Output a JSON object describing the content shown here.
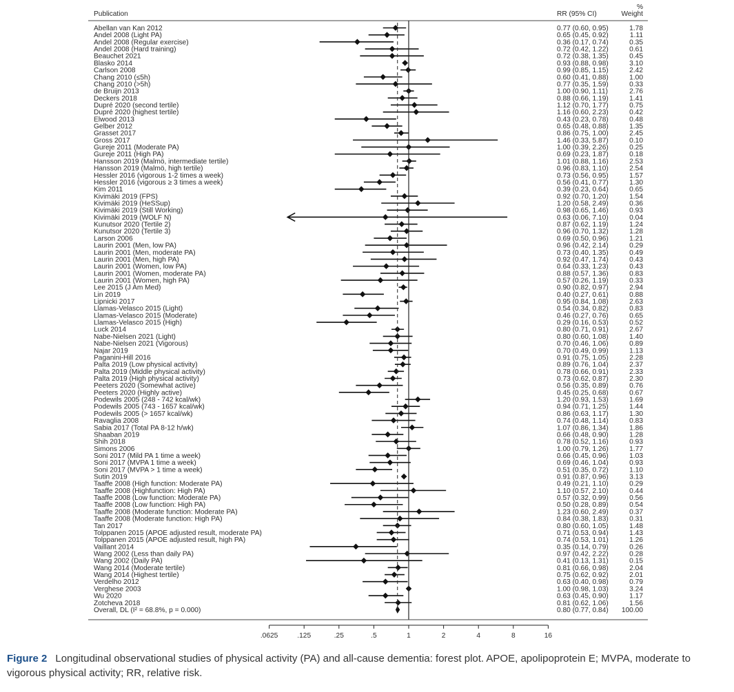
{
  "header": {
    "publication": "Publication",
    "rr": "RR (95% CI)",
    "pct": "%",
    "weight": "Weight"
  },
  "caption": {
    "label": "Figure 2",
    "text": "Longitudinal observational studies of physical activity (PA) and all-cause dementia: forest plot. APOE, apolipoprotein E; MVPA, moderate to vigorous physical activity; RR, relative risk."
  },
  "chart_data": {
    "type": "forest",
    "x_scale": "log2",
    "xlim": [
      0.0625,
      16
    ],
    "xticks": [
      ".0625",
      ".125",
      ".25",
      ".5",
      "1",
      "2",
      "4",
      "8",
      "16"
    ],
    "xtick_values": [
      0.0625,
      0.125,
      0.25,
      0.5,
      1,
      2,
      4,
      8,
      16
    ],
    "null_line": 1,
    "pooled_line": 0.8,
    "studies": [
      {
        "name": "Abellan van Kan 2012",
        "rr": 0.77,
        "lo": 0.6,
        "hi": 0.95,
        "ci": "0.77 (0.60, 0.95)",
        "w": "1.78"
      },
      {
        "name": "Andel 2008 (Light PA)",
        "rr": 0.65,
        "lo": 0.45,
        "hi": 0.92,
        "ci": "0.65 (0.45, 0.92)",
        "w": "1.11"
      },
      {
        "name": "Andel 2008 (Regular exercise)",
        "rr": 0.36,
        "lo": 0.17,
        "hi": 0.74,
        "ci": "0.36 (0.17, 0.74)",
        "w": "0.35"
      },
      {
        "name": "Andel 2008 (Hard training)",
        "rr": 0.72,
        "lo": 0.42,
        "hi": 1.22,
        "ci": "0.72 (0.42, 1.22)",
        "w": "0.61"
      },
      {
        "name": "Beauchet 2021",
        "rr": 0.72,
        "lo": 0.38,
        "hi": 1.35,
        "ci": "0.72 (0.38, 1.35)",
        "w": "0.45"
      },
      {
        "name": "Blasko 2014",
        "rr": 0.93,
        "lo": 0.88,
        "hi": 0.98,
        "ci": "0.93 (0.88, 0.98)",
        "w": "3.10"
      },
      {
        "name": "Carlson 2008",
        "rr": 0.99,
        "lo": 0.85,
        "hi": 1.15,
        "ci": "0.99 (0.85, 1.15)",
        "w": "2.42"
      },
      {
        "name": "Chang 2010 (≤5h)",
        "rr": 0.6,
        "lo": 0.41,
        "hi": 0.88,
        "ci": "0.60 (0.41, 0.88)",
        "w": "1.00"
      },
      {
        "name": "Chang 2010 (>5h)",
        "rr": 0.77,
        "lo": 0.35,
        "hi": 1.59,
        "ci": "0.77 (0.35, 1.59)",
        "w": "0.33"
      },
      {
        "name": "de Bruijn 2013",
        "rr": 1.0,
        "lo": 0.9,
        "hi": 1.11,
        "ci": "1.00 (0.90, 1.11)",
        "w": "2.76"
      },
      {
        "name": "Deckers 2018",
        "rr": 0.88,
        "lo": 0.66,
        "hi": 1.19,
        "ci": "0.88 (0.66, 1.19)",
        "w": "1.41"
      },
      {
        "name": "Dupré 2020 (second tertile)",
        "rr": 1.12,
        "lo": 0.7,
        "hi": 1.77,
        "ci": "1.12 (0.70, 1.77)",
        "w": "0.75"
      },
      {
        "name": "Dupré 2020 (highest tertile)",
        "rr": 1.16,
        "lo": 0.6,
        "hi": 2.23,
        "ci": "1.16 (0.60, 2.23)",
        "w": "0.42"
      },
      {
        "name": "Elwood 2013",
        "rr": 0.43,
        "lo": 0.23,
        "hi": 0.78,
        "ci": "0.43 (0.23, 0.78)",
        "w": "0.48"
      },
      {
        "name": "Gelber 2012",
        "rr": 0.65,
        "lo": 0.48,
        "hi": 0.88,
        "ci": "0.65 (0.48, 0.88)",
        "w": "1.35"
      },
      {
        "name": "Grasset 2017",
        "rr": 0.86,
        "lo": 0.75,
        "hi": 1.0,
        "ci": "0.86 (0.75, 1.00)",
        "w": "2.45"
      },
      {
        "name": "Gross 2017",
        "rr": 1.46,
        "lo": 0.33,
        "hi": 5.87,
        "ci": "1.46 (0.33, 5.87)",
        "w": "0.10"
      },
      {
        "name": "Gureje 2011 (Moderate PA)",
        "rr": 1.0,
        "lo": 0.39,
        "hi": 2.26,
        "ci": "1.00 (0.39, 2.26)",
        "w": "0.25"
      },
      {
        "name": "Gureje 2011 (High PA)",
        "rr": 0.69,
        "lo": 0.23,
        "hi": 1.87,
        "ci": "0.69 (0.23, 1.87)",
        "w": "0.18"
      },
      {
        "name": "Hansson 2019 (Malmö, intermediate tertile)",
        "rr": 1.01,
        "lo": 0.88,
        "hi": 1.16,
        "ci": "1.01 (0.88, 1.16)",
        "w": "2.53"
      },
      {
        "name": "Hansson 2019 (Malmö, high tertile)",
        "rr": 0.96,
        "lo": 0.83,
        "hi": 1.1,
        "ci": "0.96 (0.83, 1.10)",
        "w": "2.54"
      },
      {
        "name": "Hessler 2016 (vigorous 1-2 times a week)",
        "rr": 0.73,
        "lo": 0.56,
        "hi": 0.95,
        "ci": "0.73 (0.56, 0.95)",
        "w": "1.57"
      },
      {
        "name": "Hessler 2016 (vigorous ≥ 3 times a week)",
        "rr": 0.56,
        "lo": 0.41,
        "hi": 0.77,
        "ci": "0.56 (0.41, 0.77)",
        "w": "1.30"
      },
      {
        "name": "Kim 2011",
        "rr": 0.39,
        "lo": 0.23,
        "hi": 0.64,
        "ci": "0.39 (0.23, 0.64)",
        "w": "0.65"
      },
      {
        "name": "Kivimäki 2019 (FPS)",
        "rr": 0.92,
        "lo": 0.7,
        "hi": 1.2,
        "ci": "0.92 (0.70, 1.20)",
        "w": "1.54"
      },
      {
        "name": "Kivimäki 2019 (HeSSup)",
        "rr": 1.2,
        "lo": 0.58,
        "hi": 2.49,
        "ci": "1.20 (0.58, 2.49)",
        "w": "0.36"
      },
      {
        "name": "Kivimäki 2019 (Still Working)",
        "rr": 0.98,
        "lo": 0.65,
        "hi": 1.46,
        "ci": "0.98 (0.65, 1.46)",
        "w": "0.93"
      },
      {
        "name": "Kivimäki 2019 (WOLF N)",
        "rr": 0.63,
        "lo": 0.06,
        "hi": 7.1,
        "ci": "0.63 (0.06, 7.10)",
        "w": "0.04",
        "arrow_left": true
      },
      {
        "name": "Kunutsor 2020 (Tertile 2)",
        "rr": 0.87,
        "lo": 0.62,
        "hi": 1.19,
        "ci": "0.87 (0.62, 1.19)",
        "w": "1.24"
      },
      {
        "name": "Kunutsor 2020 (Tertile 3)",
        "rr": 0.96,
        "lo": 0.7,
        "hi": 1.32,
        "ci": "0.96 (0.70, 1.32)",
        "w": "1.28"
      },
      {
        "name": "Larson 2006",
        "rr": 0.69,
        "lo": 0.5,
        "hi": 0.96,
        "ci": "0.69 (0.50, 0.96)",
        "w": "1.21"
      },
      {
        "name": "Laurin 2001 (Men, low PA)",
        "rr": 0.96,
        "lo": 0.42,
        "hi": 2.14,
        "ci": "0.96 (0.42, 2.14)",
        "w": "0.29"
      },
      {
        "name": "Laurin 2001 (Men, moderate PA)",
        "rr": 0.73,
        "lo": 0.4,
        "hi": 1.35,
        "ci": "0.73 (0.40, 1.35)",
        "w": "0.49"
      },
      {
        "name": "Laurin 2001 (Men, high PA)",
        "rr": 0.92,
        "lo": 0.47,
        "hi": 1.74,
        "ci": "0.92 (0.47, 1.74)",
        "w": "0.43"
      },
      {
        "name": "Laurin 2001 (Women, low PA)",
        "rr": 0.64,
        "lo": 0.33,
        "hi": 1.23,
        "ci": "0.64 (0.33, 1.23)",
        "w": "0.43"
      },
      {
        "name": "Laurin 2001 (Women, moderate PA)",
        "rr": 0.88,
        "lo": 0.57,
        "hi": 1.36,
        "ci": "0.88 (0.57, 1.36)",
        "w": "0.83"
      },
      {
        "name": "Laurin 2001 (Women, high PA)",
        "rr": 0.57,
        "lo": 0.26,
        "hi": 1.19,
        "ci": "0.57 (0.26, 1.19)",
        "w": "0.33"
      },
      {
        "name": "Lee 2015 (J Am Med)",
        "rr": 0.9,
        "lo": 0.82,
        "hi": 0.97,
        "ci": "0.90 (0.82, 0.97)",
        "w": "2.94"
      },
      {
        "name": "Lin 2019",
        "rr": 0.4,
        "lo": 0.27,
        "hi": 0.61,
        "ci": "0.40 (0.27, 0.61)",
        "w": "0.88"
      },
      {
        "name": "Lipnicki 2017",
        "rr": 0.95,
        "lo": 0.84,
        "hi": 1.08,
        "ci": "0.95 (0.84, 1.08)",
        "w": "2.63"
      },
      {
        "name": "Llamas-Velasco 2015 (Light)",
        "rr": 0.54,
        "lo": 0.34,
        "hi": 0.82,
        "ci": "0.54 (0.34, 0.82)",
        "w": "0.83"
      },
      {
        "name": "Llamas-Velasco 2015 (Moderate)",
        "rr": 0.46,
        "lo": 0.27,
        "hi": 0.76,
        "ci": "0.46 (0.27, 0.76)",
        "w": "0.65"
      },
      {
        "name": "Llamas-Velasco 2015 (High)",
        "rr": 0.29,
        "lo": 0.16,
        "hi": 0.53,
        "ci": "0.29 (0.16, 0.53)",
        "w": "0.52"
      },
      {
        "name": "Luck 2014",
        "rr": 0.8,
        "lo": 0.71,
        "hi": 0.91,
        "ci": "0.80 (0.71, 0.91)",
        "w": "2.67"
      },
      {
        "name": "Nabe-Nielsen 2021 (Light)",
        "rr": 0.8,
        "lo": 0.6,
        "hi": 1.08,
        "ci": "0.80 (0.60, 1.08)",
        "w": "1.40"
      },
      {
        "name": "Nabe-Nielsen 2021 (Vigorous)",
        "rr": 0.7,
        "lo": 0.46,
        "hi": 1.06,
        "ci": "0.70 (0.46, 1.06)",
        "w": "0.89"
      },
      {
        "name": "Najar 2019",
        "rr": 0.7,
        "lo": 0.49,
        "hi": 0.99,
        "ci": "0.70 (0.49, 0.99)",
        "w": "1.13"
      },
      {
        "name": "Paganini-Hill 2016",
        "rr": 0.91,
        "lo": 0.75,
        "hi": 1.05,
        "ci": "0.91 (0.75, 1.05)",
        "w": "2.28"
      },
      {
        "name": "Palta 2019 (Low physical activity)",
        "rr": 0.89,
        "lo": 0.76,
        "hi": 1.04,
        "ci": "0.89 (0.76, 1.04)",
        "w": "2.37"
      },
      {
        "name": "Palta 2019 (Middle physical activity)",
        "rr": 0.78,
        "lo": 0.66,
        "hi": 0.91,
        "ci": "0.78 (0.66, 0.91)",
        "w": "2.33"
      },
      {
        "name": "Palta 2019 (High physical activity)",
        "rr": 0.73,
        "lo": 0.62,
        "hi": 0.87,
        "ci": "0.73 (0.62, 0.87)",
        "w": "2.30"
      },
      {
        "name": "Peeters 2020 (Somewhat active)",
        "rr": 0.56,
        "lo": 0.35,
        "hi": 0.89,
        "ci": "0.56 (0.35, 0.89)",
        "w": "0.76"
      },
      {
        "name": "Peeters 2020 (Highly active)",
        "rr": 0.45,
        "lo": 0.25,
        "hi": 0.68,
        "ci": "0.45 (0.25, 0.68)",
        "w": "0.67"
      },
      {
        "name": "Podewils 2005 (248 - 742 kcal/wk)",
        "rr": 1.2,
        "lo": 0.93,
        "hi": 1.53,
        "ci": "1.20 (0.93, 1.53)",
        "w": "1.69"
      },
      {
        "name": "Podewils 2005 (743 - 1657 kcal/wk)",
        "rr": 0.94,
        "lo": 0.71,
        "hi": 1.25,
        "ci": "0.94 (0.71, 1.25)",
        "w": "1.44"
      },
      {
        "name": "Podewils 2005 (> 1657 kcal/wk)",
        "rr": 0.86,
        "lo": 0.63,
        "hi": 1.17,
        "ci": "0.86 (0.63, 1.17)",
        "w": "1.30"
      },
      {
        "name": "Ravaglia 2008",
        "rr": 0.74,
        "lo": 0.48,
        "hi": 1.14,
        "ci": "0.74 (0.48, 1.14)",
        "w": "0.83"
      },
      {
        "name": "Sabia 2017 (Total PA 8-12 h/wk)",
        "rr": 1.07,
        "lo": 0.86,
        "hi": 1.34,
        "ci": "1.07 (0.86, 1.34)",
        "w": "1.86"
      },
      {
        "name": "Shaaban 2019",
        "rr": 0.66,
        "lo": 0.48,
        "hi": 0.9,
        "ci": "0.66 (0.48, 0.90)",
        "w": "1.28"
      },
      {
        "name": "Shih 2018",
        "rr": 0.78,
        "lo": 0.52,
        "hi": 1.16,
        "ci": "0.78 (0.52, 1.16)",
        "w": "0.93"
      },
      {
        "name": "Simons 2006",
        "rr": 1.0,
        "lo": 0.79,
        "hi": 1.26,
        "ci": "1.00 (0.79, 1.26)",
        "w": "1.77"
      },
      {
        "name": "Soni 2017 (Mild PA 1 time a week)",
        "rr": 0.66,
        "lo": 0.45,
        "hi": 0.96,
        "ci": "0.66 (0.45, 0.96)",
        "w": "1.03"
      },
      {
        "name": "Soni 2017 (MVPA 1 time a week)",
        "rr": 0.69,
        "lo": 0.46,
        "hi": 1.04,
        "ci": "0.69 (0.46, 1.04)",
        "w": "0.93"
      },
      {
        "name": "Soni 2017 (MVPA > 1 time a week)",
        "rr": 0.51,
        "lo": 0.35,
        "hi": 0.72,
        "ci": "0.51 (0.35, 0.72)",
        "w": "1.10"
      },
      {
        "name": "Sutin 2019",
        "rr": 0.91,
        "lo": 0.87,
        "hi": 0.96,
        "ci": "0.91 (0.87, 0.96)",
        "w": "3.13"
      },
      {
        "name": "Taaffe 2008 (High function: Moderate PA)",
        "rr": 0.49,
        "lo": 0.21,
        "hi": 1.1,
        "ci": "0.49 (0.21, 1.10)",
        "w": "0.29"
      },
      {
        "name": "Taaffe 2008 (Highfunction: High PA)",
        "rr": 1.1,
        "lo": 0.57,
        "hi": 2.1,
        "ci": "1.10 (0.57, 2.10)",
        "w": "0.44"
      },
      {
        "name": "Taaffe 2008 (Low function: Moderate PA)",
        "rr": 0.57,
        "lo": 0.32,
        "hi": 0.99,
        "ci": "0.57 (0.32, 0.99)",
        "w": "0.56"
      },
      {
        "name": "Taaffe 2008 (Low function: High PA)",
        "rr": 0.5,
        "lo": 0.28,
        "hi": 0.89,
        "ci": "0.50 (0.28, 0.89)",
        "w": "0.54"
      },
      {
        "name": "Taaffe 2008 (Moderate function: Moderate PA)",
        "rr": 1.23,
        "lo": 0.6,
        "hi": 2.49,
        "ci": "1.23 (0.60, 2.49)",
        "w": "0.37"
      },
      {
        "name": "Taaffe 2008 (Moderate function: High PA)",
        "rr": 0.84,
        "lo": 0.38,
        "hi": 1.83,
        "ci": "0.84 (0.38, 1.83)",
        "w": "0.31"
      },
      {
        "name": "Tan 2017",
        "rr": 0.8,
        "lo": 0.6,
        "hi": 1.05,
        "ci": "0.80 (0.60, 1.05)",
        "w": "1.48"
      },
      {
        "name": "Tolppanen 2015 (APOE adjusted result, moderate PA)",
        "rr": 0.71,
        "lo": 0.53,
        "hi": 0.94,
        "ci": "0.71 (0.53, 0.94)",
        "w": "1.43"
      },
      {
        "name": "Tolppanen 2015 (APOE adjusted result, high PA)",
        "rr": 0.74,
        "lo": 0.53,
        "hi": 1.01,
        "ci": "0.74 (0.53, 1.01)",
        "w": "1.26"
      },
      {
        "name": "Vaillant 2014",
        "rr": 0.35,
        "lo": 0.14,
        "hi": 0.79,
        "ci": "0.35 (0.14, 0.79)",
        "w": "0.26"
      },
      {
        "name": "Wang 2002 (Less than daily PA)",
        "rr": 0.97,
        "lo": 0.42,
        "hi": 2.22,
        "ci": "0.97 (0.42, 2.22)",
        "w": "0.28"
      },
      {
        "name": "Wang 2002 (Daily PA)",
        "rr": 0.41,
        "lo": 0.13,
        "hi": 1.31,
        "ci": "0.41 (0.13, 1.31)",
        "w": "0.15"
      },
      {
        "name": "Wang 2014 (Moderate tertile)",
        "rr": 0.81,
        "lo": 0.66,
        "hi": 0.98,
        "ci": "0.81 (0.66, 0.98)",
        "w": "2.04"
      },
      {
        "name": "Wang 2014 (Highest tertile)",
        "rr": 0.75,
        "lo": 0.62,
        "hi": 0.92,
        "ci": "0.75 (0.62, 0.92)",
        "w": "2.01"
      },
      {
        "name": "Verdelho 2012",
        "rr": 0.63,
        "lo": 0.4,
        "hi": 0.98,
        "ci": "0.63 (0.40, 0.98)",
        "w": "0.79"
      },
      {
        "name": "Verghese 2003",
        "rr": 1.0,
        "lo": 0.98,
        "hi": 1.03,
        "ci": "1.00 (0.98, 1.03)",
        "w": "3.24"
      },
      {
        "name": "Wu 2020",
        "rr": 0.63,
        "lo": 0.45,
        "hi": 0.9,
        "ci": "0.63 (0.45, 0.90)",
        "w": "1.17"
      },
      {
        "name": "Zotcheva 2018",
        "rr": 0.81,
        "lo": 0.62,
        "hi": 1.06,
        "ci": "0.81 (0.62, 1.06)",
        "w": "1.56"
      }
    ],
    "overall": {
      "name": "Overall, DL (I² = 68.8%, p = 0.000)",
      "rr": 0.8,
      "lo": 0.77,
      "hi": 0.84,
      "ci": "0.80 (0.77, 0.84)",
      "w": "100.00"
    }
  }
}
